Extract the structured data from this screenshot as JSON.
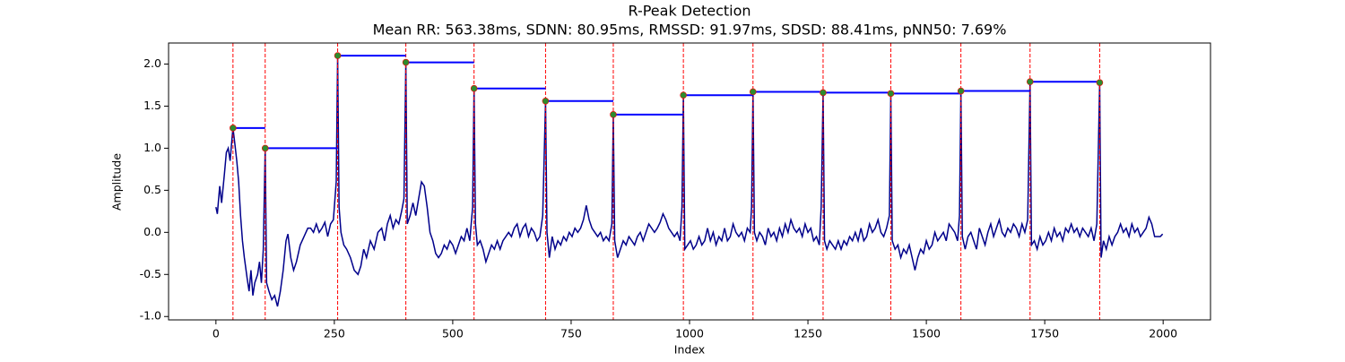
{
  "chart_data": {
    "type": "line",
    "title": "R-Peak Detection",
    "subtitle": "Mean RR: 563.38ms, SDNN: 80.95ms, RMSSD: 91.97ms, SDSD: 88.41ms, pNN50: 7.69%",
    "x_label": "Index",
    "y_label": "Amplitude",
    "xlim": [
      -100,
      2100
    ],
    "ylim": [
      -1.04,
      2.25
    ],
    "xticks": [
      0,
      250,
      500,
      750,
      1000,
      1250,
      1500,
      1750,
      2000
    ],
    "yticks": [
      {
        "value": -1,
        "label": "-1.0"
      },
      -0.5,
      {
        "value": 0,
        "label": "0.0"
      },
      0.5,
      {
        "value": 1,
        "label": "1.0"
      },
      1.5,
      {
        "value": 2,
        "label": "2.0"
      }
    ],
    "x": [
      0,
      3,
      8,
      12,
      18,
      22,
      26,
      30,
      34,
      36,
      40,
      44,
      48,
      52,
      56,
      60,
      66,
      70,
      74,
      78,
      82,
      88,
      92,
      96,
      100,
      104,
      107,
      112,
      118,
      124,
      130,
      136,
      142,
      148,
      152,
      158,
      164,
      170,
      178,
      186,
      194,
      200,
      206,
      212,
      218,
      224,
      230,
      236,
      242,
      248,
      254,
      257,
      260,
      264,
      270,
      276,
      284,
      292,
      300,
      306,
      312,
      318,
      326,
      334,
      342,
      350,
      356,
      362,
      368,
      374,
      380,
      386,
      392,
      397,
      401,
      404,
      410,
      416,
      422,
      428,
      434,
      440,
      446,
      452,
      458,
      464,
      470,
      476,
      482,
      488,
      494,
      500,
      506,
      512,
      518,
      524,
      530,
      536,
      542,
      545,
      548,
      552,
      558,
      564,
      570,
      576,
      582,
      588,
      594,
      600,
      606,
      612,
      618,
      624,
      630,
      636,
      642,
      648,
      654,
      660,
      666,
      672,
      678,
      684,
      690,
      696,
      699,
      704,
      710,
      716,
      722,
      728,
      734,
      740,
      746,
      752,
      758,
      764,
      770,
      776,
      782,
      788,
      794,
      800,
      806,
      812,
      818,
      824,
      830,
      836,
      839,
      842,
      848,
      854,
      860,
      866,
      872,
      878,
      884,
      890,
      896,
      902,
      908,
      914,
      920,
      926,
      932,
      938,
      944,
      950,
      956,
      962,
      968,
      974,
      980,
      984,
      987,
      990,
      996,
      1002,
      1008,
      1014,
      1020,
      1026,
      1032,
      1038,
      1044,
      1050,
      1056,
      1062,
      1068,
      1074,
      1080,
      1086,
      1092,
      1098,
      1104,
      1110,
      1116,
      1122,
      1128,
      1131,
      1134,
      1137,
      1142,
      1148,
      1154,
      1160,
      1166,
      1172,
      1178,
      1184,
      1190,
      1196,
      1202,
      1208,
      1214,
      1220,
      1226,
      1232,
      1238,
      1244,
      1250,
      1256,
      1262,
      1268,
      1274,
      1278,
      1282,
      1285,
      1290,
      1296,
      1302,
      1308,
      1314,
      1320,
      1326,
      1332,
      1338,
      1344,
      1350,
      1356,
      1362,
      1368,
      1374,
      1380,
      1386,
      1392,
      1398,
      1404,
      1410,
      1416,
      1422,
      1425,
      1428,
      1434,
      1440,
      1446,
      1452,
      1458,
      1464,
      1470,
      1476,
      1482,
      1488,
      1494,
      1500,
      1506,
      1512,
      1518,
      1524,
      1530,
      1536,
      1542,
      1548,
      1554,
      1560,
      1566,
      1570,
      1573,
      1576,
      1582,
      1588,
      1594,
      1600,
      1606,
      1612,
      1618,
      1624,
      1630,
      1636,
      1642,
      1648,
      1654,
      1660,
      1666,
      1672,
      1678,
      1684,
      1690,
      1696,
      1702,
      1708,
      1714,
      1719,
      1722,
      1728,
      1734,
      1740,
      1746,
      1752,
      1758,
      1764,
      1770,
      1776,
      1782,
      1788,
      1794,
      1800,
      1806,
      1812,
      1818,
      1824,
      1830,
      1836,
      1842,
      1848,
      1854,
      1860,
      1866,
      1869,
      1874,
      1880,
      1886,
      1892,
      1898,
      1904,
      1910,
      1916,
      1922,
      1928,
      1934,
      1940,
      1946,
      1952,
      1958,
      1964,
      1970,
      1976,
      1982,
      1988,
      1994,
      1999
    ],
    "series": [
      {
        "color": "#00008b",
        "values": [
          0.3,
          0.22,
          0.55,
          0.35,
          0.7,
          0.95,
          1.0,
          0.85,
          1.12,
          1.24,
          1.05,
          0.85,
          0.6,
          0.2,
          -0.1,
          -0.3,
          -0.55,
          -0.7,
          -0.45,
          -0.75,
          -0.6,
          -0.5,
          -0.35,
          -0.6,
          -0.2,
          1.0,
          -0.6,
          -0.7,
          -0.8,
          -0.75,
          -0.88,
          -0.7,
          -0.45,
          -0.1,
          -0.02,
          -0.3,
          -0.45,
          -0.35,
          -0.15,
          -0.05,
          0.05,
          0.05,
          0.0,
          0.1,
          0.0,
          0.05,
          0.12,
          -0.05,
          0.1,
          0.15,
          0.6,
          2.1,
          0.3,
          0.0,
          -0.15,
          -0.2,
          -0.3,
          -0.45,
          -0.5,
          -0.4,
          -0.2,
          -0.3,
          -0.1,
          -0.2,
          0.0,
          0.05,
          -0.1,
          0.1,
          0.2,
          0.05,
          0.15,
          0.1,
          0.25,
          0.4,
          2.02,
          0.1,
          0.2,
          0.35,
          0.2,
          0.4,
          0.6,
          0.55,
          0.3,
          0.0,
          -0.1,
          -0.25,
          -0.3,
          -0.25,
          -0.15,
          -0.2,
          -0.1,
          -0.15,
          -0.25,
          -0.15,
          -0.05,
          -0.1,
          0.05,
          -0.1,
          0.3,
          1.71,
          0.1,
          -0.15,
          -0.1,
          -0.2,
          -0.35,
          -0.25,
          -0.15,
          -0.2,
          -0.1,
          -0.2,
          -0.1,
          -0.05,
          0.0,
          -0.05,
          0.05,
          0.1,
          -0.05,
          0.05,
          0.1,
          -0.05,
          0.05,
          0.0,
          -0.1,
          -0.05,
          0.2,
          1.56,
          0.0,
          -0.3,
          -0.05,
          -0.2,
          -0.1,
          -0.15,
          -0.05,
          -0.1,
          0.0,
          -0.05,
          0.05,
          0.0,
          0.05,
          0.15,
          0.32,
          0.15,
          0.05,
          0.0,
          -0.05,
          0.0,
          -0.1,
          -0.05,
          -0.1,
          0.1,
          1.4,
          -0.1,
          -0.3,
          -0.2,
          -0.1,
          -0.15,
          -0.05,
          -0.1,
          -0.15,
          -0.05,
          0.0,
          -0.1,
          0.0,
          0.1,
          0.05,
          0.0,
          0.05,
          0.12,
          0.22,
          0.15,
          0.05,
          0.0,
          -0.05,
          0.0,
          -0.1,
          0.3,
          1.63,
          -0.2,
          -0.15,
          -0.1,
          -0.2,
          -0.15,
          -0.05,
          -0.15,
          -0.1,
          0.05,
          -0.1,
          0.0,
          -0.15,
          -0.05,
          -0.1,
          0.05,
          -0.1,
          -0.05,
          0.1,
          0.0,
          -0.05,
          0.0,
          -0.1,
          0.05,
          0.0,
          0.3,
          1.67,
          0.0,
          -0.1,
          0.0,
          -0.05,
          -0.15,
          0.05,
          -0.05,
          0.0,
          -0.1,
          0.05,
          -0.05,
          0.1,
          0.0,
          0.15,
          0.05,
          0.0,
          0.05,
          -0.05,
          0.1,
          0.0,
          0.05,
          -0.1,
          -0.05,
          -0.15,
          0.3,
          1.66,
          -0.1,
          -0.2,
          -0.1,
          -0.15,
          -0.2,
          -0.1,
          -0.2,
          -0.1,
          -0.15,
          -0.05,
          -0.1,
          0.0,
          -0.1,
          0.05,
          -0.1,
          -0.05,
          0.1,
          0.0,
          0.05,
          0.15,
          0.0,
          -0.05,
          0.05,
          0.2,
          1.65,
          -0.1,
          -0.2,
          -0.15,
          -0.3,
          -0.2,
          -0.25,
          -0.15,
          -0.3,
          -0.45,
          -0.3,
          -0.2,
          -0.25,
          -0.1,
          -0.2,
          -0.15,
          0.0,
          -0.1,
          -0.05,
          0.0,
          -0.1,
          0.1,
          0.05,
          0.0,
          -0.1,
          0.2,
          1.68,
          -0.05,
          -0.2,
          -0.05,
          0.0,
          -0.1,
          -0.2,
          0.05,
          -0.05,
          -0.15,
          0.0,
          0.1,
          -0.05,
          0.05,
          0.15,
          0.0,
          -0.05,
          0.05,
          0.0,
          0.1,
          0.05,
          -0.05,
          0.1,
          0.0,
          0.15,
          1.79,
          -0.15,
          -0.1,
          -0.2,
          -0.05,
          -0.15,
          -0.1,
          0.0,
          -0.1,
          0.05,
          -0.05,
          0.0,
          -0.1,
          0.05,
          0.0,
          0.1,
          0.0,
          0.05,
          -0.05,
          0.05,
          0.0,
          -0.05,
          0.05,
          -0.1,
          0.1,
          1.78,
          -0.3,
          -0.1,
          -0.2,
          -0.05,
          -0.15,
          -0.05,
          0.0,
          0.1,
          0.0,
          0.05,
          -0.05,
          0.1,
          0.0,
          0.05,
          -0.05,
          0.0,
          0.05,
          0.18,
          0.1,
          -0.05,
          -0.05,
          -0.05,
          -0.02
        ]
      }
    ],
    "peaks": {
      "color": "#2e8b2e",
      "vline_color": "#ff0000",
      "step_color": "#0000ff",
      "x": [
        36,
        104,
        257,
        401,
        545,
        696,
        839,
        987,
        1134,
        1282,
        1425,
        1573,
        1719,
        1866
      ],
      "values": [
        1.24,
        1.0,
        2.1,
        2.02,
        1.71,
        1.56,
        1.4,
        1.63,
        1.67,
        1.66,
        1.65,
        1.68,
        1.79,
        1.78
      ]
    }
  }
}
